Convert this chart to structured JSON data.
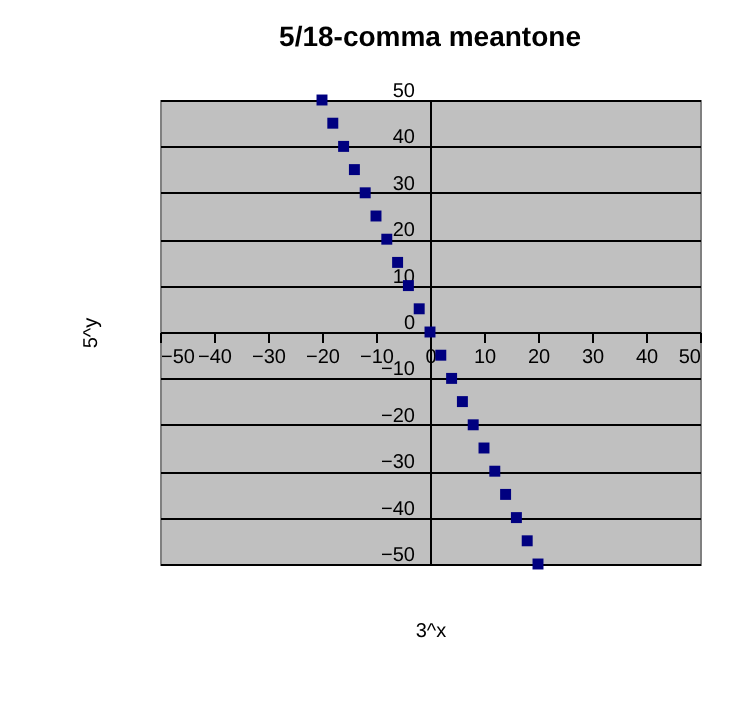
{
  "chart_data": {
    "type": "scatter",
    "title": "5/18-comma meantone",
    "xlabel": "3^x",
    "ylabel": "5^y",
    "x": [
      -20,
      -18,
      -16,
      -14,
      -12,
      -10,
      -8,
      -6,
      -4,
      -2,
      0,
      2,
      4,
      6,
      8,
      10,
      12,
      14,
      16,
      18,
      20
    ],
    "series": [
      {
        "color": "#000080",
        "values": [
          50,
          45,
          40,
          35,
          30,
          25,
          20,
          15,
          10,
          5,
          0,
          -5,
          -10,
          -15,
          -20,
          -25,
          -30,
          -35,
          -40,
          -45,
          -50
        ]
      }
    ],
    "xlim": [
      -50,
      50
    ],
    "ylim": [
      -50,
      50
    ],
    "xticks": [
      -50,
      -40,
      -30,
      -20,
      -10,
      0,
      10,
      20,
      30,
      40,
      50
    ],
    "yticks": [
      -50,
      -40,
      -30,
      -20,
      -10,
      0,
      10,
      20,
      30,
      40,
      50
    ],
    "grid": "y",
    "marker": "square",
    "legend": false
  }
}
